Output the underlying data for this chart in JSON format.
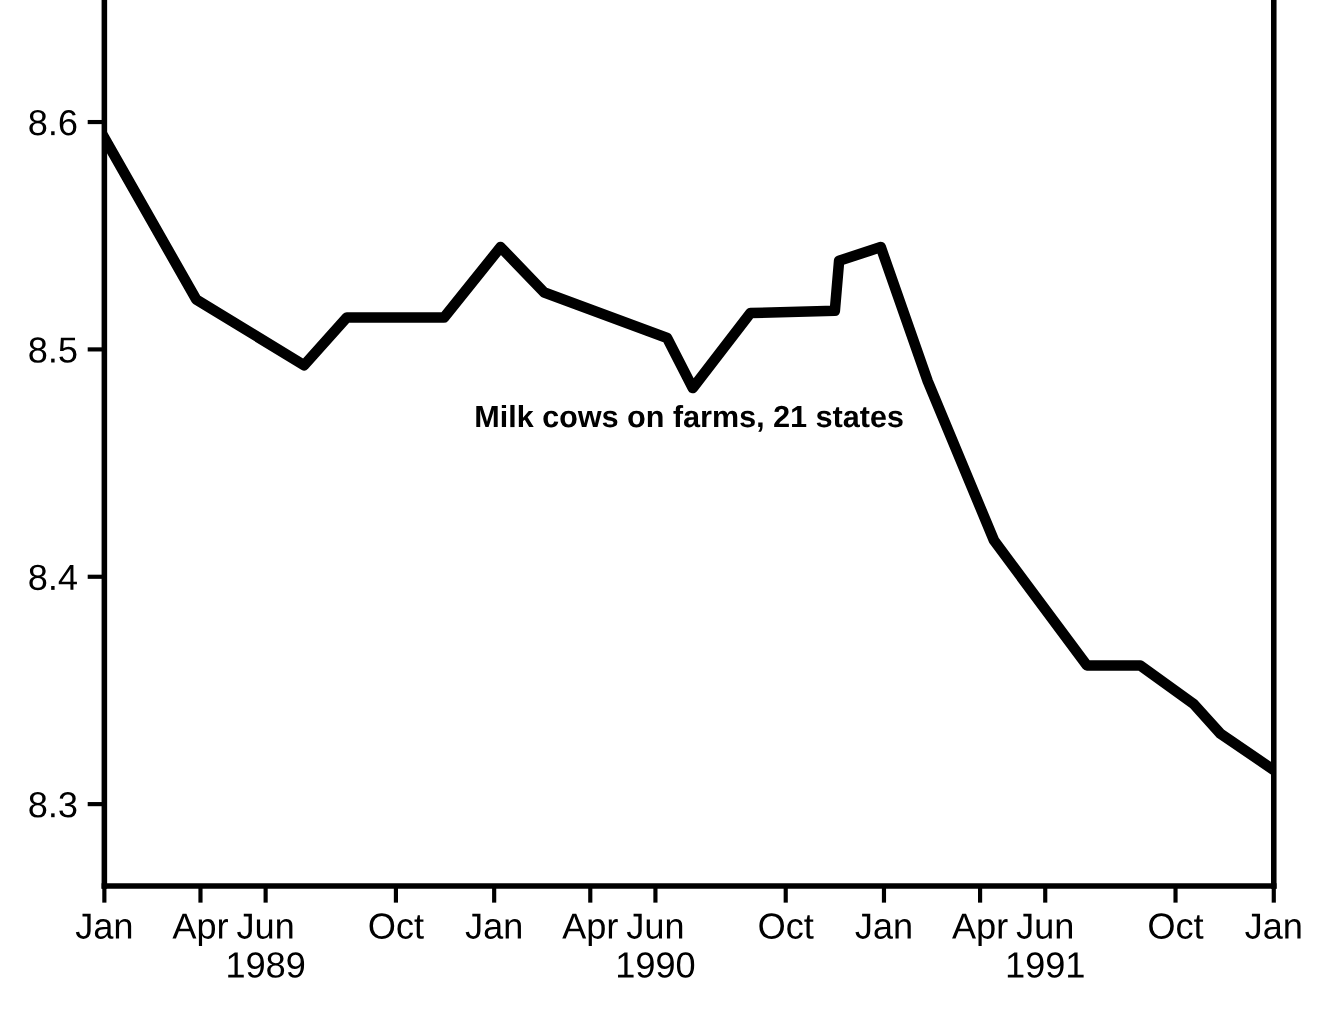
{
  "chart_data": {
    "type": "line",
    "title": "Milk cows on farms, 21 states",
    "x": [
      "1989-01-01",
      "1989-03-28",
      "1989-07-07",
      "1989-08-16",
      "1989-11-15",
      "1990-01-07",
      "1990-02-17",
      "1990-06-12",
      "1990-07-06",
      "1990-08-29",
      "1990-11-16",
      "1990-11-20",
      "1990-12-29",
      "1991-02-11",
      "1991-04-14",
      "1991-07-10",
      "1991-08-29",
      "1991-10-18",
      "1991-11-12",
      "1992-01-01"
    ],
    "series": [
      {
        "color": "#000000",
        "values": [
          8.593,
          8.522,
          8.493,
          8.514,
          8.514,
          8.545,
          8.525,
          8.505,
          8.483,
          8.516,
          8.517,
          8.539,
          8.545,
          8.486,
          8.416,
          8.361,
          8.361,
          8.344,
          8.331,
          8.315
        ]
      }
    ],
    "xlim": [
      "1989-01-01",
      "1992-01-01"
    ],
    "xticks": [
      {
        "value": "1989-01-01",
        "label": "Jan"
      },
      {
        "value": "1989-04-01",
        "label": "Apr"
      },
      {
        "value": "1989-06-01",
        "label": "Jun\n1989"
      },
      {
        "value": "1989-10-01",
        "label": "Oct"
      },
      {
        "value": "1990-01-01",
        "label": "Jan"
      },
      {
        "value": "1990-04-01",
        "label": "Apr"
      },
      {
        "value": "1990-06-01",
        "label": "Jun\n1990"
      },
      {
        "value": "1990-10-01",
        "label": "Oct"
      },
      {
        "value": "1991-01-01",
        "label": "Jan"
      },
      {
        "value": "1991-04-01",
        "label": "Apr"
      },
      {
        "value": "1991-06-01",
        "label": "Jun\n1991"
      },
      {
        "value": "1991-10-01",
        "label": "Oct"
      },
      {
        "value": "1992-01-01",
        "label": "Jan"
      }
    ],
    "ylim": [
      8.264,
      8.653
    ],
    "yticks": [
      8.3,
      8.4,
      8.5,
      8.6
    ],
    "grid": false,
    "marker": "none",
    "line_style": "solid",
    "legend": false
  }
}
